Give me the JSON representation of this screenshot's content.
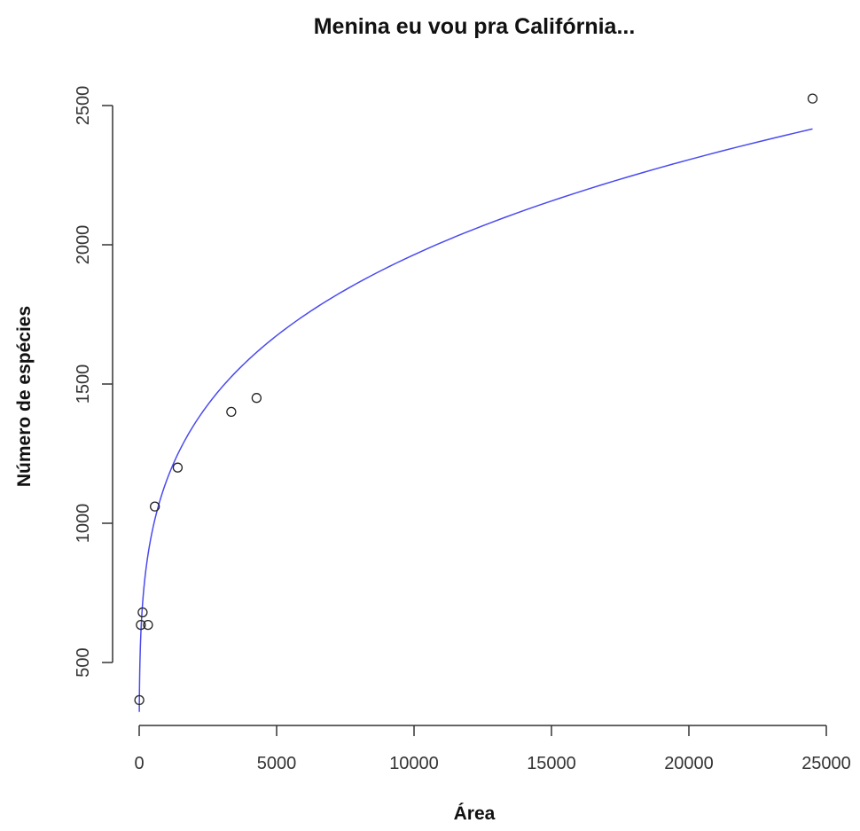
{
  "chart_data": {
    "type": "scatter",
    "title": "Menina eu vou pra Califórnia...",
    "xlabel": "Área",
    "ylabel": "Número de espécies",
    "xlim": [
      0,
      25000
    ],
    "ylim": [
      300,
      2600
    ],
    "xticks": [
      0,
      5000,
      10000,
      15000,
      20000,
      25000
    ],
    "xtick_labels": [
      "0",
      "5000",
      "10000",
      "15000",
      "20000",
      "25000"
    ],
    "yticks": [
      500,
      1000,
      1500,
      2000,
      2500
    ],
    "ytick_labels": [
      "500",
      "1000",
      "1500",
      "2000",
      "2500"
    ],
    "grid": false,
    "points": [
      {
        "x": 4,
        "y": 365
      },
      {
        "x": 60,
        "y": 635
      },
      {
        "x": 125,
        "y": 680
      },
      {
        "x": 320,
        "y": 635
      },
      {
        "x": 570,
        "y": 1060
      },
      {
        "x": 1400,
        "y": 1200
      },
      {
        "x": 3350,
        "y": 1400
      },
      {
        "x": 4270,
        "y": 1450
      },
      {
        "x": 24500,
        "y": 2525
      }
    ],
    "fit": {
      "model": "power",
      "coef": 234,
      "exponent": 0.231,
      "x_range": [
        4,
        24500
      ],
      "color": "#4a4af0"
    },
    "point_color": "#222222"
  }
}
